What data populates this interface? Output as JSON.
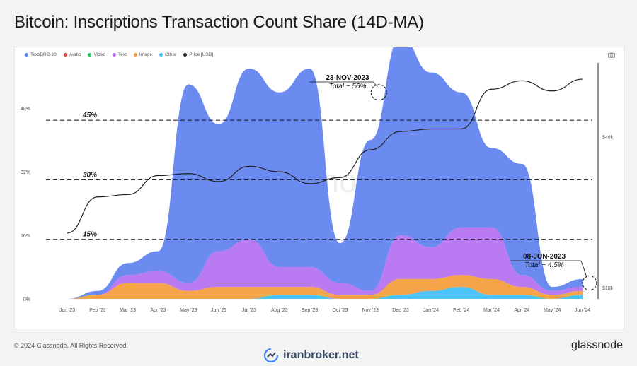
{
  "title": "Bitcoin: Inscriptions Transaction Count Share (14D-MA)",
  "legend": [
    {
      "label": "Text/BRC-20",
      "color": "#5b7ef0"
    },
    {
      "label": "Audio",
      "color": "#e8403a"
    },
    {
      "label": "Video",
      "color": "#22c55e"
    },
    {
      "label": "Text",
      "color": "#b26cf0"
    },
    {
      "label": "Image",
      "color": "#f59a36"
    },
    {
      "label": "Other",
      "color": "#38bdf8"
    },
    {
      "label": "Price [USD]",
      "color": "#222222"
    }
  ],
  "footer": {
    "copyright": "© 2024 Glassnode. All Rights Reserved.",
    "brand": "glassnode",
    "watermark": "iranbroker.net"
  },
  "chart_data": {
    "type": "area",
    "title": "Bitcoin: Inscriptions Transaction Count Share (14D-MA)",
    "x_ticks": [
      "Jan '23",
      "Feb '23",
      "Mar '23",
      "Apr '23",
      "May '23",
      "Jun '23",
      "Jul '23",
      "Aug '23",
      "Sep '23",
      "Oct '23",
      "Nov '23",
      "Dec '23",
      "Jan '24",
      "Feb '24",
      "Mar '24",
      "Apr '24",
      "May '24",
      "Jun '24"
    ],
    "y_left_ticks": [
      "0%",
      "16%",
      "32%",
      "48%"
    ],
    "y_left_range": [
      0,
      48
    ],
    "y_right_ticks": [
      "$10k",
      "$40k"
    ],
    "y_right_scale": "log",
    "reference_lines": [
      {
        "label": "15%",
        "value": 15
      },
      {
        "label": "30%",
        "value": 30
      },
      {
        "label": "45%",
        "value": 45
      }
    ],
    "annotations": [
      {
        "date": "23-NOV-2023",
        "text": "Total ~ 56%"
      },
      {
        "date": "08-JUN-2023",
        "text": "Total ~ 4.5%"
      }
    ],
    "watermark": "glassnode",
    "x": [
      "Jan '23",
      "Feb '23",
      "Mar '23",
      "Apr '23",
      "May '23",
      "Jun '23",
      "Jul '23",
      "Aug '23",
      "Sep '23",
      "Oct '23",
      "Nov '23",
      "Dec '23",
      "Jan '24",
      "Feb '24",
      "Mar '24",
      "Apr '24",
      "May '24",
      "Jun '24"
    ],
    "series": [
      {
        "name": "Text/BRC-20",
        "color": "#5b7ef0",
        "values": [
          0,
          1,
          3,
          5,
          50,
          32,
          43,
          44,
          50,
          10,
          38,
          50,
          44,
          34,
          20,
          28,
          1,
          2
        ]
      },
      {
        "name": "Text",
        "color": "#b26cf0",
        "values": [
          0,
          0,
          2,
          3,
          2,
          9,
          12,
          5,
          5,
          3,
          1,
          11,
          8,
          12,
          13,
          3,
          1,
          1
        ]
      },
      {
        "name": "Image",
        "color": "#f59a36",
        "values": [
          0,
          1,
          4,
          4,
          2,
          3,
          3,
          2,
          2,
          1,
          1,
          4,
          3,
          3,
          4,
          2,
          1,
          1
        ]
      },
      {
        "name": "Other",
        "color": "#38bdf8",
        "values": [
          0,
          0,
          0,
          0,
          0,
          0,
          0,
          1,
          1,
          0,
          0,
          1,
          2,
          3,
          1,
          1,
          0,
          1
        ]
      },
      {
        "name": "Price [USD]",
        "color": "#222222",
        "values": [
          16500,
          23000,
          23500,
          28000,
          28500,
          26500,
          30500,
          29000,
          26000,
          27500,
          35500,
          42000,
          43000,
          43000,
          62000,
          67000,
          61000,
          68000
        ]
      }
    ]
  }
}
